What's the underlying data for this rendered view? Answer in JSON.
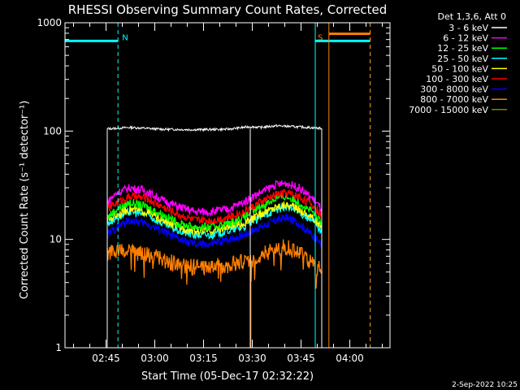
{
  "chart_data": {
    "type": "line",
    "title": "RHESSI Observing Summary Count Rates, Corrected",
    "xlabel": "Start Time (05-Dec-17 02:32:22)",
    "ylabel": "Corrected Count Rate (s⁻¹ detector⁻¹)",
    "ylog": true,
    "ylim": [
      1,
      1000
    ],
    "xlim_minutes": [
      0,
      100
    ],
    "x_ticks": [
      {
        "label": "02:45",
        "min": 12.63
      },
      {
        "label": "03:00",
        "min": 27.63
      },
      {
        "label": "03:15",
        "min": 42.63
      },
      {
        "label": "03:30",
        "min": 57.63
      },
      {
        "label": "03:45",
        "min": 72.63
      },
      {
        "label": "04:00",
        "min": 87.63
      }
    ],
    "y_ticks": [
      {
        "label": "1",
        "value": 1
      },
      {
        "label": "10",
        "value": 10
      },
      {
        "label": "100",
        "value": 100
      },
      {
        "label": "1000",
        "value": 1000
      }
    ],
    "legend_title": "Det 1,3,6, Att 0",
    "legend_placement": "right",
    "series": [
      {
        "name": "3 - 6 keV",
        "color": "#ffffff",
        "x": [
          13,
          20,
          30,
          40,
          50,
          57,
          60,
          65,
          70,
          75,
          79
        ],
        "y": [
          105,
          108,
          104,
          103,
          104,
          110,
          108,
          112,
          110,
          108,
          106
        ]
      },
      {
        "name": "6 - 12 keV",
        "color": "#ff00ff",
        "x": [
          13,
          16,
          20,
          25,
          30,
          35,
          40,
          45,
          50,
          55,
          60,
          65,
          68,
          72,
          76,
          79
        ],
        "y": [
          22,
          27,
          30,
          28,
          23,
          20,
          18,
          18,
          19,
          22,
          27,
          32,
          33,
          30,
          24,
          19
        ]
      },
      {
        "name": "12 - 25 keV",
        "color": "#00ff00",
        "x": [
          13,
          16,
          20,
          25,
          30,
          35,
          40,
          45,
          50,
          55,
          60,
          65,
          68,
          72,
          76,
          79
        ],
        "y": [
          16,
          19,
          22,
          20,
          17,
          14,
          13,
          13,
          14,
          16,
          20,
          24,
          25,
          22,
          18,
          14
        ]
      },
      {
        "name": "25 - 50 keV",
        "color": "#00ffff",
        "x": [
          13,
          16,
          20,
          25,
          30,
          35,
          40,
          45,
          50,
          55,
          60,
          65,
          68,
          72,
          76,
          79
        ],
        "y": [
          14,
          16,
          18,
          17,
          14,
          12,
          11,
          11,
          12,
          13,
          16,
          19,
          20,
          18,
          15,
          12
        ]
      },
      {
        "name": "50 - 100 keV",
        "color": "#ffff00",
        "x": [
          13,
          16,
          20,
          25,
          30,
          35,
          40,
          45,
          50,
          55,
          60,
          65,
          68,
          72,
          76,
          79
        ],
        "y": [
          15,
          17,
          19,
          18,
          15,
          13,
          12,
          12,
          13,
          14,
          17,
          20,
          21,
          19,
          16,
          13
        ]
      },
      {
        "name": "100 - 300 keV",
        "color": "#ff0000",
        "x": [
          13,
          16,
          20,
          25,
          30,
          35,
          40,
          45,
          50,
          55,
          60,
          65,
          68,
          72,
          76,
          79
        ],
        "y": [
          19,
          22,
          25,
          24,
          20,
          17,
          15,
          15,
          16,
          18,
          22,
          26,
          27,
          25,
          21,
          17
        ]
      },
      {
        "name": "300 - 8000 keV",
        "color": "#0000ff",
        "x": [
          13,
          16,
          20,
          25,
          30,
          35,
          40,
          45,
          50,
          55,
          60,
          65,
          68,
          72,
          76,
          79
        ],
        "y": [
          11,
          13,
          15,
          14,
          12,
          10,
          9,
          9,
          10,
          11,
          13,
          15,
          16,
          14,
          11,
          9
        ]
      },
      {
        "name": "800 - 7000 keV",
        "color": "#ff8000",
        "x": [
          13,
          16,
          20,
          25,
          30,
          35,
          40,
          45,
          50,
          55,
          60,
          65,
          68,
          72,
          76,
          79
        ],
        "y": [
          7.5,
          8,
          7.8,
          7.4,
          6.5,
          5.8,
          5.5,
          5.6,
          5.8,
          6.2,
          7.2,
          8.2,
          8.5,
          7.5,
          6,
          5.3
        ]
      },
      {
        "name": "7000 - 15000 keV",
        "color": "#808000",
        "x": [],
        "y": []
      }
    ],
    "annotations": [
      {
        "label": "N",
        "color": "#00ffff",
        "start_min": 0,
        "end_min": 16.3,
        "level": 680
      },
      {
        "label": "S",
        "color": "#00ffff",
        "start_min": 77,
        "end_min": 93.9,
        "level": 680
      },
      {
        "label": "",
        "color": "#ff8000",
        "start_min": 81.2,
        "end_min": 93.9,
        "level": 790
      }
    ],
    "timestamp": "2-Sep-2022 10:25"
  }
}
